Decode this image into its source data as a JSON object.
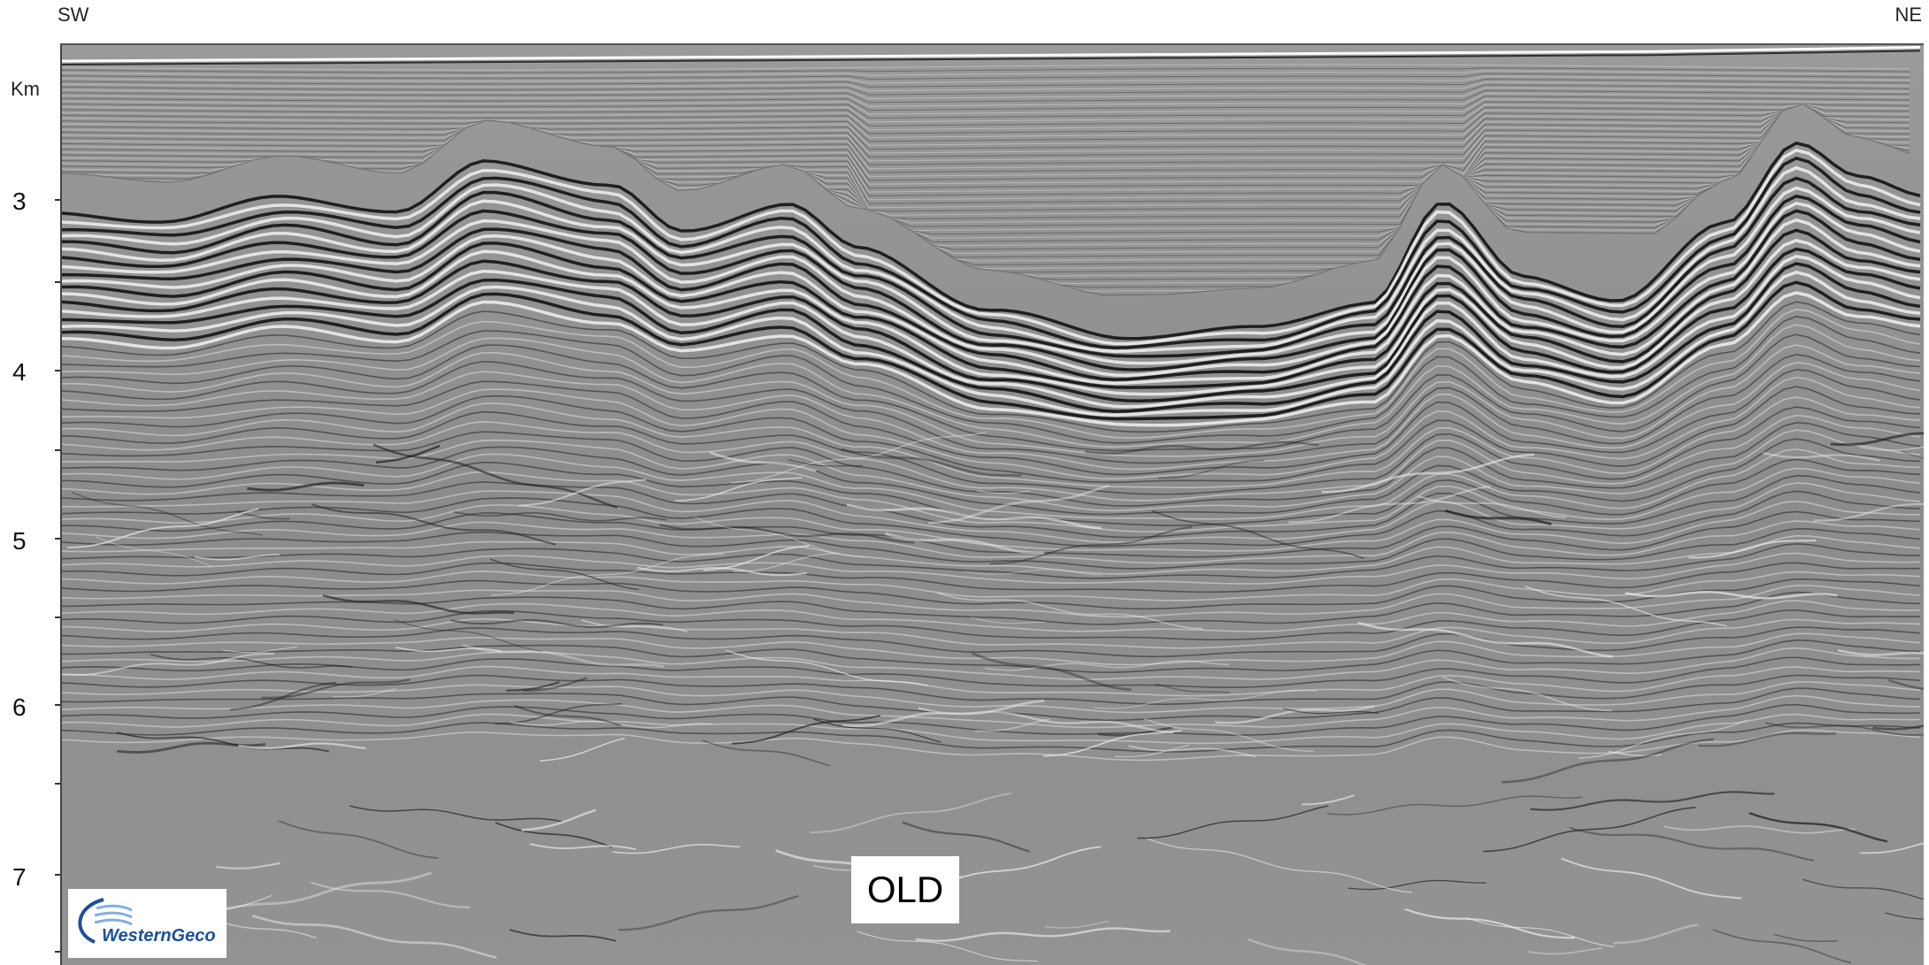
{
  "header": {
    "left_direction": "SW",
    "right_direction": "NE"
  },
  "axis": {
    "unit": "Km",
    "ticks": [
      "3",
      "4",
      "5",
      "6",
      "7"
    ]
  },
  "section_label": "OLD",
  "logo": {
    "text": "WesternGeco",
    "color": "#1b4f9c"
  },
  "colors": {
    "seismic_background": "#8e8e8e",
    "reflector_dark": "#000000",
    "reflector_light": "#ffffff"
  }
}
